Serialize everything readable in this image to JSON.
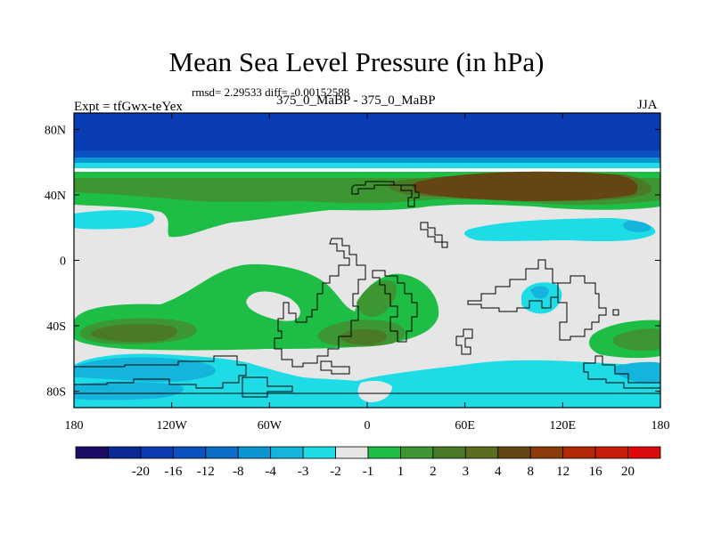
{
  "chart_data": {
    "type": "heatmap",
    "title": "Mean Sea Level Pressure (in hPa)",
    "stats_text": "rmsd= 2.29533 diff= -0.00152588",
    "left_label": "Expt = tfGwx-teYex",
    "subtitle": "375_0_MaBP - 375_0_MaBP",
    "season": "JJA",
    "x_range": [
      -180,
      180
    ],
    "y_range": [
      -90,
      90
    ],
    "x_ticks": [
      {
        "value": -180,
        "label": "180"
      },
      {
        "value": -120,
        "label": "120W"
      },
      {
        "value": -60,
        "label": "60W"
      },
      {
        "value": 0,
        "label": "0"
      },
      {
        "value": 60,
        "label": "60E"
      },
      {
        "value": 120,
        "label": "120E"
      },
      {
        "value": 180,
        "label": "180"
      }
    ],
    "y_ticks": [
      {
        "value": 80,
        "label": "80N"
      },
      {
        "value": 40,
        "label": "40N"
      },
      {
        "value": 0,
        "label": "0"
      },
      {
        "value": -40,
        "label": "40S"
      },
      {
        "value": -80,
        "label": "80S"
      }
    ],
    "colorbar": {
      "colors": [
        "#1a0c64",
        "#0a2896",
        "#0a3cb4",
        "#0a50be",
        "#0a6ec8",
        "#0a96d2",
        "#14b4dc",
        "#1edce6",
        "#e6e6e6",
        "#1ebe46",
        "#3c9632",
        "#4a7a28",
        "#5a6e1e",
        "#644614",
        "#8c3c0a",
        "#b42806",
        "#c81e0a",
        "#dc0a0a"
      ],
      "labels": [
        "-20",
        "-16",
        "-12",
        "-8",
        "-4",
        "-3",
        "-2",
        "-1",
        "1",
        "2",
        "3",
        "4",
        "8",
        "12",
        "16",
        "20"
      ]
    },
    "regions": [
      {
        "name": "arctic-low",
        "level": "-8 to -12",
        "lon_range": [
          -180,
          180
        ],
        "lat_range": [
          66,
          90
        ]
      },
      {
        "name": "midlatitude-high-band",
        "level": "1 to 3",
        "lon_range": [
          -180,
          180
        ],
        "lat_range": [
          20,
          55
        ]
      },
      {
        "name": "north-pacific-high-core",
        "level": "4 to 8",
        "lon_range": [
          30,
          165
        ],
        "lat_range": [
          36,
          55
        ]
      },
      {
        "name": "tropical-atlantic-low",
        "level": "-1 to -2",
        "lon_range": [
          -165,
          -95
        ],
        "lat_range": [
          17,
          32
        ]
      },
      {
        "name": "north-pacific-low",
        "level": "-1 to -2",
        "lon_range": [
          62,
          160
        ],
        "lat_range": [
          10,
          25
        ]
      },
      {
        "name": "southern-subtropical-high",
        "level": "1 to 4",
        "lon_range": [
          -180,
          45
        ],
        "lat_range": [
          -50,
          -15
        ]
      },
      {
        "name": "southern-ocean-low",
        "level": "-1 to -3",
        "lon_range": [
          -180,
          180
        ],
        "lat_range": [
          -90,
          -60
        ]
      },
      {
        "name": "indian-ocean-low",
        "level": "-1 to -2",
        "lon_range": [
          95,
          135
        ],
        "lat_range": [
          -35,
          -15
        ]
      },
      {
        "name": "south-pacific-high",
        "level": "1 to 3",
        "lon_range": [
          122,
          180
        ],
        "lat_range": [
          -60,
          -40
        ]
      }
    ]
  }
}
